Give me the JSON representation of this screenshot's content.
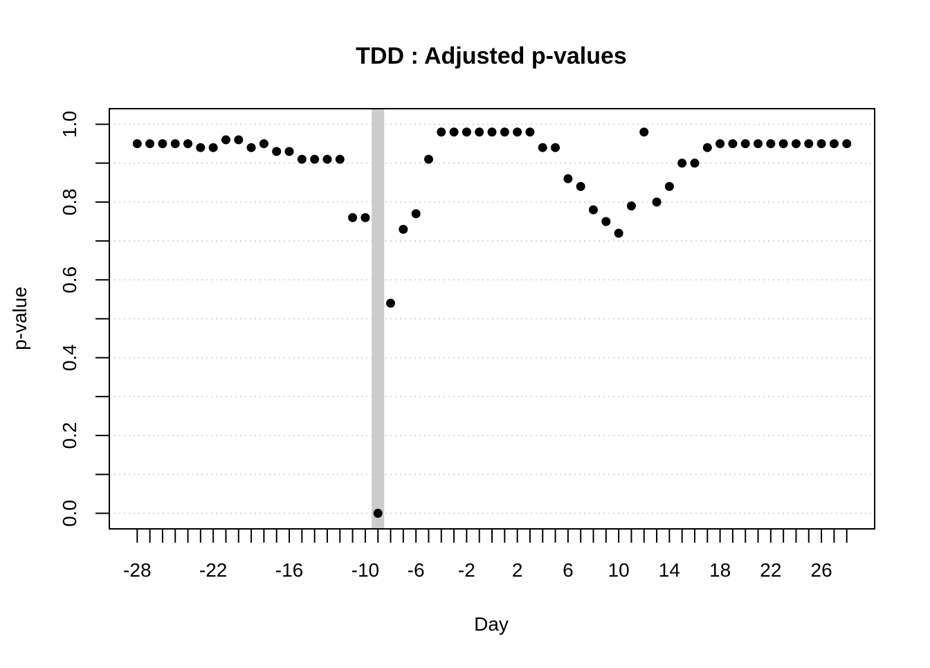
{
  "chart_data": {
    "type": "scatter",
    "title": "TDD : Adjusted p-values",
    "xlabel": "Day",
    "ylabel": "p-value",
    "xlim": [
      -30.2,
      30.2
    ],
    "ylim": [
      -0.04,
      1.04
    ],
    "x_ticks": [
      -28,
      -27,
      -26,
      -25,
      -24,
      -23,
      -22,
      -21,
      -20,
      -19,
      -18,
      -17,
      -16,
      -15,
      -14,
      -13,
      -12,
      -11,
      -10,
      -9,
      -8,
      -7,
      -6,
      -5,
      -4,
      -3,
      -2,
      -1,
      0,
      1,
      2,
      3,
      4,
      5,
      6,
      7,
      8,
      9,
      10,
      11,
      12,
      13,
      14,
      15,
      16,
      17,
      18,
      19,
      20,
      21,
      22,
      23,
      24,
      25,
      26,
      27,
      28
    ],
    "x_tick_labels": [
      "-28",
      "-22",
      "-16",
      "-10",
      "-6",
      "-2",
      "2",
      "6",
      "10",
      "14",
      "18",
      "22",
      "26"
    ],
    "y_ticks": [
      "0.0",
      "0.2",
      "0.4",
      "0.6",
      "0.8",
      "1.0"
    ],
    "y_gridlines": [
      0,
      0.1,
      0.2,
      0.3,
      0.4,
      0.5,
      0.6,
      0.7,
      0.8,
      0.9,
      1.0
    ],
    "grid": "horizontal dotted",
    "highlight_band": {
      "x_center": -9,
      "color": "#cccccc"
    },
    "colors": {
      "points": "#000000",
      "grid": "#cccccc",
      "band": "#cccccc"
    },
    "series": [
      {
        "x": [
          -28,
          -27,
          -26,
          -25,
          -24,
          -23,
          -22,
          -21,
          -20,
          -19,
          -18,
          -17,
          -16,
          -15,
          -14,
          -13,
          -12,
          -11,
          -10,
          -9,
          -8,
          -7,
          -6,
          -5,
          -4,
          -3,
          -2,
          -1,
          0,
          1,
          2,
          3,
          4,
          5,
          6,
          7,
          8,
          9,
          10,
          11,
          12,
          13,
          14,
          15,
          16,
          17,
          18,
          19,
          20,
          21,
          22,
          23,
          24,
          25,
          26,
          27,
          28
        ],
        "y": [
          0.95,
          0.95,
          0.95,
          0.95,
          0.95,
          0.94,
          0.94,
          0.96,
          0.96,
          0.94,
          0.95,
          0.93,
          0.93,
          0.91,
          0.91,
          0.91,
          0.91,
          0.76,
          0.76,
          0.0,
          0.54,
          0.73,
          0.77,
          0.91,
          0.98,
          0.98,
          0.98,
          0.98,
          0.98,
          0.98,
          0.98,
          0.98,
          0.94,
          0.94,
          0.86,
          0.84,
          0.78,
          0.75,
          0.72,
          0.79,
          0.98,
          0.8,
          0.84,
          0.9,
          0.9,
          0.94,
          0.95,
          0.95,
          0.95,
          0.95,
          0.95,
          0.95,
          0.95,
          0.95,
          0.95,
          0.95,
          0.95
        ]
      }
    ]
  }
}
